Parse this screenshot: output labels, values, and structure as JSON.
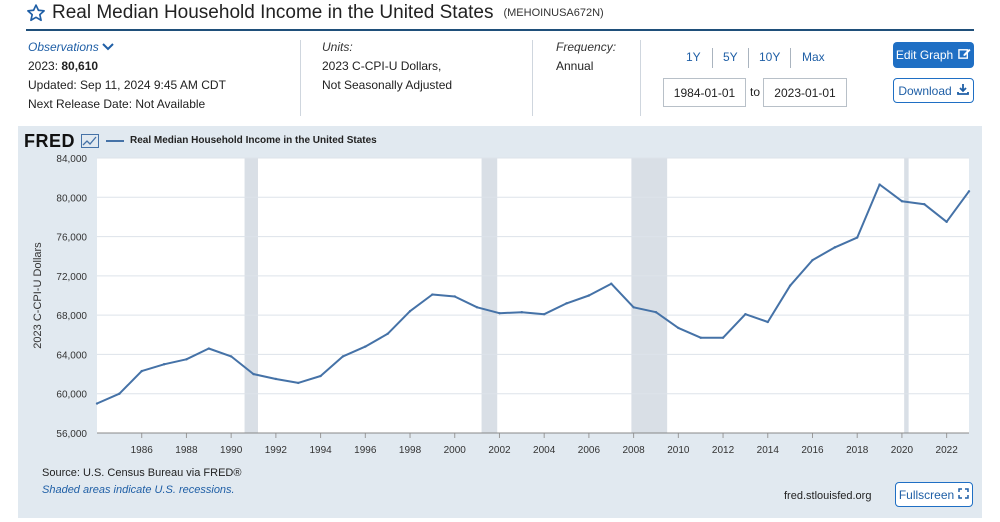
{
  "header": {
    "title": "Real Median Household Income in the United States",
    "series_id": "(MEHOINUSA672N)"
  },
  "observations": {
    "label": "Observations",
    "latest_label": "2023:",
    "latest_value": "80,610",
    "updated": "Updated: Sep 11, 2024 9:45 AM CDT",
    "next_release": "Next Release Date: Not Available"
  },
  "units": {
    "label": "Units:",
    "line1": "2023 C-CPI-U Dollars,",
    "line2": "Not Seasonally Adjusted"
  },
  "frequency": {
    "label": "Frequency:",
    "value": "Annual"
  },
  "range_buttons": [
    "1Y",
    "5Y",
    "10Y",
    "Max"
  ],
  "date_range": {
    "start": "1984-01-01",
    "to": "to",
    "end": "2023-01-01"
  },
  "buttons": {
    "edit": "Edit Graph",
    "download": "Download",
    "fullscreen": "Fullscreen"
  },
  "footer": {
    "source": "Source: U.S. Census Bureau via FRED®",
    "shaded": "Shaded areas indicate U.S. recessions.",
    "url": "fred.stlouisfed.org"
  },
  "logo": "FRED",
  "colors": {
    "line": "#4572a7",
    "recession": "#d9dfe6",
    "accent": "#1f6fc4"
  },
  "chart_data": {
    "type": "line",
    "legend": "Real Median Household Income in the United States",
    "ylabel": "2023 C-CPI-U Dollars",
    "xlim": [
      1984,
      2023
    ],
    "ylim": [
      56000,
      84000
    ],
    "yticks": [
      56000,
      60000,
      64000,
      68000,
      72000,
      76000,
      80000,
      84000
    ],
    "ytick_labels": [
      "56,000",
      "60,000",
      "64,000",
      "68,000",
      "72,000",
      "76,000",
      "80,000",
      "84,000"
    ],
    "xticks": [
      1986,
      1988,
      1990,
      1992,
      1994,
      1996,
      1998,
      2000,
      2002,
      2004,
      2006,
      2008,
      2010,
      2012,
      2014,
      2016,
      2018,
      2020,
      2022
    ],
    "recessions": [
      [
        1990.6,
        1991.2
      ],
      [
        2001.2,
        2001.9
      ],
      [
        2007.9,
        2009.5
      ],
      [
        2020.1,
        2020.3
      ]
    ],
    "series": [
      {
        "name": "Real Median Household Income in the United States",
        "x": [
          1984,
          1985,
          1986,
          1987,
          1988,
          1989,
          1990,
          1991,
          1992,
          1993,
          1994,
          1995,
          1996,
          1997,
          1998,
          1999,
          2000,
          2001,
          2002,
          2003,
          2004,
          2005,
          2006,
          2007,
          2008,
          2009,
          2010,
          2011,
          2012,
          2013,
          2014,
          2015,
          2016,
          2017,
          2018,
          2019,
          2020,
          2021,
          2022,
          2023
        ],
        "y": [
          59000,
          60000,
          62300,
          63000,
          63500,
          64600,
          63800,
          62000,
          61500,
          61100,
          61800,
          63800,
          64800,
          66100,
          68400,
          70100,
          69900,
          68800,
          68200,
          68300,
          68100,
          69200,
          70000,
          71200,
          68800,
          68300,
          66700,
          65700,
          65700,
          68100,
          67300,
          71000,
          73600,
          74900,
          75900,
          81300,
          79600,
          79300,
          77500,
          80610
        ]
      }
    ]
  }
}
